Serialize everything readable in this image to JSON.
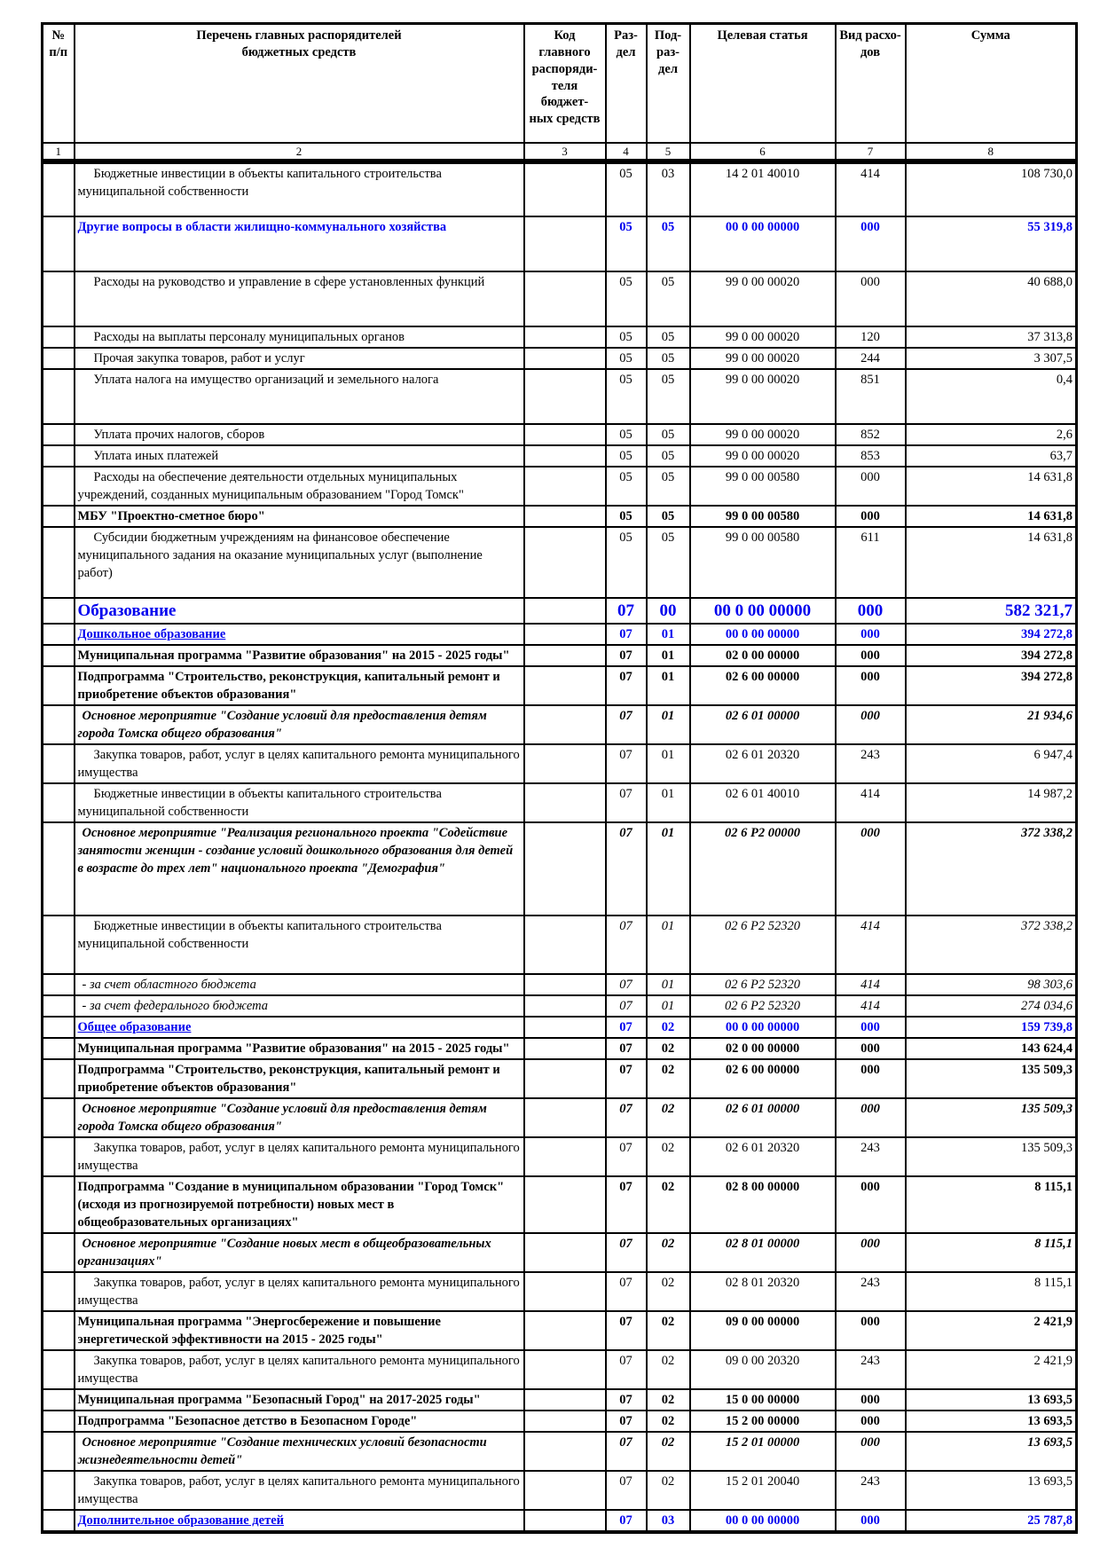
{
  "colors": {
    "accent_blue": "#0000EE",
    "text": "#000000",
    "border": "#000000",
    "page_background": "#FFFFFF"
  },
  "table": {
    "header": {
      "col_num": "№\nп/п",
      "col_name": "Перечень главных распорядителей\nбюджетных средств",
      "col_code": "Код\nглавного\nраспоряди-\nтеля бюджет-\nных средств",
      "col_razdel": "Раз-\nдел",
      "col_podrazdel": "Под-\nраз-\nдел",
      "col_target": "Целевая статья",
      "col_vid": "Вид расхо-\nдов",
      "col_sum": "Сумма"
    },
    "column_numbers": [
      "1",
      "2",
      "3",
      "4",
      "5",
      "6",
      "7",
      "8"
    ],
    "rows": [
      {
        "name": "Бюджетные инвестиции в объекты капитального строительства муниципальной собственности",
        "code": "",
        "razdel": "05",
        "podrazdel": "03",
        "target": "14 2 01 40010",
        "vid": "414",
        "sum": "108 730,0",
        "style": "plain",
        "minh": 62
      },
      {
        "name": "Другие вопросы в области жилищно-коммунального хозяйства",
        "code": "",
        "razdel": "05",
        "podrazdel": "05",
        "target": "00 0 00 00000",
        "vid": "000",
        "sum": "55 319,8",
        "style": "blue",
        "minh": 62
      },
      {
        "name": "Расходы на руководство и управление в сфере установленных функций",
        "code": "",
        "razdel": "05",
        "podrazdel": "05",
        "target": "99 0 00 00020",
        "vid": "000",
        "sum": "40 688,0",
        "style": "plain",
        "minh": 62
      },
      {
        "name": "Расходы на выплаты персоналу муниципальных органов",
        "code": "",
        "razdel": "05",
        "podrazdel": "05",
        "target": "99 0 00 00020",
        "vid": "120",
        "sum": "37 313,8",
        "style": "plain"
      },
      {
        "name": "Прочая закупка товаров, работ и услуг",
        "code": "",
        "razdel": "05",
        "podrazdel": "05",
        "target": "99 0 00 00020",
        "vid": "244",
        "sum": "3 307,5",
        "style": "plain"
      },
      {
        "name": "Уплата налога на имущество организаций и земельного налога",
        "code": "",
        "razdel": "05",
        "podrazdel": "05",
        "target": "99 0 00 00020",
        "vid": "851",
        "sum": "0,4",
        "style": "plain",
        "minh": 62
      },
      {
        "name": "Уплата прочих налогов, сборов",
        "code": "",
        "razdel": "05",
        "podrazdel": "05",
        "target": "99 0 00 00020",
        "vid": "852",
        "sum": "2,6",
        "style": "plain"
      },
      {
        "name": "Уплата иных платежей",
        "code": "",
        "razdel": "05",
        "podrazdel": "05",
        "target": "99 0 00 00020",
        "vid": "853",
        "sum": "63,7",
        "style": "plain"
      },
      {
        "name": "Расходы на обеспечение деятельности отдельных муниципальных учреждений, созданных муниципальным образованием \"Город Томск\"",
        "code": "",
        "razdel": "05",
        "podrazdel": "05",
        "target": "99 0 00 00580",
        "vid": "000",
        "sum": "14 631,8",
        "style": "plain"
      },
      {
        "name": "МБУ \"Проектно-сметное бюро\"",
        "code": "",
        "razdel": "05",
        "podrazdel": "05",
        "target": "99 0 00 00580",
        "vid": "000",
        "sum": "14 631,8",
        "style": "bold"
      },
      {
        "name": "Субсидии бюджетным учреждениям на финансовое обеспечение муниципального задания на оказание муниципальных услуг (выполнение работ)",
        "code": "",
        "razdel": "05",
        "podrazdel": "05",
        "target": "99 0 00 00580",
        "vid": "611",
        "sum": "14 631,8",
        "style": "plain",
        "minh": 80
      },
      {
        "name": "Образование",
        "code": "",
        "razdel": "07",
        "podrazdel": "00",
        "target": "00 0 00 00000",
        "vid": "000",
        "sum": "582 321,7",
        "style": "blue-big"
      },
      {
        "name": "Дошкольное образование",
        "code": "",
        "razdel": "07",
        "podrazdel": "01",
        "target": "00 0 00 00000",
        "vid": "000",
        "sum": "394 272,8",
        "style": "blue-underline"
      },
      {
        "name": "Муниципальная программа \"Развитие образования\" на 2015 - 2025 годы\"",
        "code": "",
        "razdel": "07",
        "podrazdel": "01",
        "target": "02 0 00 00000",
        "vid": "000",
        "sum": "394 272,8",
        "style": "bold"
      },
      {
        "name": "Подпрограмма \"Строительство, реконструкция, капитальный ремонт и приобретение объектов образования\"",
        "code": "",
        "razdel": "07",
        "podrazdel": "01",
        "target": "02 6 00 00000",
        "vid": "000",
        "sum": "394 272,8",
        "style": "bold"
      },
      {
        "name": "Основное мероприятие \"Создание условий для предоставления детям города Томска общего образования\"",
        "code": "",
        "razdel": "07",
        "podrazdel": "01",
        "target": "02 6 01 00000",
        "vid": "000",
        "sum": "21 934,6",
        "style": "bolditalic"
      },
      {
        "name": "Закупка товаров, работ, услуг в целях капитального ремонта муниципального имущества",
        "code": "",
        "razdel": "07",
        "podrazdel": "01",
        "target": "02 6 01 20320",
        "vid": "243",
        "sum": "6 947,4",
        "style": "plain"
      },
      {
        "name": "Бюджетные инвестиции в объекты капитального строительства муниципальной собственности",
        "code": "",
        "razdel": "07",
        "podrazdel": "01",
        "target": "02 6 01 40010",
        "vid": "414",
        "sum": "14 987,2",
        "style": "plain"
      },
      {
        "name": "Основное мероприятие \"Реализация регионального проекта \"Содействие занятости женщин - создание условий дошкольного образования для детей в возрасте до трех лет\" национального проекта \"Демография\"",
        "code": "",
        "razdel": "07",
        "podrazdel": "01",
        "target": "02 6 Р2 00000",
        "vid": "000",
        "sum": "372 338,2",
        "style": "bolditalic",
        "minh": 105
      },
      {
        "name": "Бюджетные инвестиции в объекты капитального строительства муниципальной собственности",
        "code": "",
        "razdel": "07",
        "podrazdel": "01",
        "target": "02 6 Р2 52320",
        "vid": "414",
        "sum": "372 338,2",
        "style": "italic-codes",
        "minh": 66
      },
      {
        "name": "- за счет областного бюджета",
        "code": "",
        "razdel": "07",
        "podrazdel": "01",
        "target": "02 6 Р2 52320",
        "vid": "414",
        "sum": "98 303,6",
        "style": "italic"
      },
      {
        "name": "- за счет федерального бюджета",
        "code": "",
        "razdel": "07",
        "podrazdel": "01",
        "target": "02 6 Р2 52320",
        "vid": "414",
        "sum": "274 034,6",
        "style": "italic"
      },
      {
        "name": "Общее образование",
        "code": "",
        "razdel": "07",
        "podrazdel": "02",
        "target": "00 0 00 00000",
        "vid": "000",
        "sum": "159 739,8",
        "style": "blue-underline"
      },
      {
        "name": "Муниципальная программа \"Развитие образования\" на 2015 - 2025 годы\"",
        "code": "",
        "razdel": "07",
        "podrazdel": "02",
        "target": "02 0 00 00000",
        "vid": "000",
        "sum": "143 624,4",
        "style": "bold"
      },
      {
        "name": "Подпрограмма \"Строительство, реконструкция, капитальный ремонт и приобретение объектов образования\"",
        "code": "",
        "razdel": "07",
        "podrazdel": "02",
        "target": "02 6 00 00000",
        "vid": "000",
        "sum": "135 509,3",
        "style": "bold"
      },
      {
        "name": "Основное мероприятие \"Создание условий для предоставления детям города Томска общего образования\"",
        "code": "",
        "razdel": "07",
        "podrazdel": "02",
        "target": "02 6 01 00000",
        "vid": "000",
        "sum": "135 509,3",
        "style": "bolditalic"
      },
      {
        "name": "Закупка товаров, работ, услуг в целях капитального ремонта муниципального имущества",
        "code": "",
        "razdel": "07",
        "podrazdel": "02",
        "target": "02 6 01 20320",
        "vid": "243",
        "sum": "135 509,3",
        "style": "plain"
      },
      {
        "name": "Подпрограмма \"Создание в муниципальном образовании \"Город Томск\" (исходя из прогнозируемой потребности) новых мест в общеобразовательных организациях\"",
        "code": "",
        "razdel": "07",
        "podrazdel": "02",
        "target": "02 8 00 00000",
        "vid": "000",
        "sum": "8 115,1",
        "style": "bold"
      },
      {
        "name": "Основное мероприятие \"Создание новых мест в общеобразовательных организациях\"",
        "code": "",
        "razdel": "07",
        "podrazdel": "02",
        "target": "02 8 01 00000",
        "vid": "000",
        "sum": "8 115,1",
        "style": "bolditalic"
      },
      {
        "name": "Закупка товаров, работ, услуг в целях капитального ремонта муниципального имущества",
        "code": "",
        "razdel": "07",
        "podrazdel": "02",
        "target": "02 8 01 20320",
        "vid": "243",
        "sum": "8 115,1",
        "style": "plain"
      },
      {
        "name": "Муниципальная программа \"Энергосбережение и повышение энергетической эффективности на 2015 - 2025 годы\"",
        "code": "",
        "razdel": "07",
        "podrazdel": "02",
        "target": "09 0 00 00000",
        "vid": "000",
        "sum": "2 421,9",
        "style": "bold"
      },
      {
        "name": "Закупка товаров, работ, услуг в целях капитального ремонта муниципального имущества",
        "code": "",
        "razdel": "07",
        "podrazdel": "02",
        "target": "09 0 00 20320",
        "vid": "243",
        "sum": "2 421,9",
        "style": "plain"
      },
      {
        "name": "Муниципальная программа \"Безопасный Город\" на 2017-2025 годы\"",
        "code": "",
        "razdel": "07",
        "podrazdel": "02",
        "target": "15 0 00 00000",
        "vid": "000",
        "sum": "13 693,5",
        "style": "bold"
      },
      {
        "name": "Подпрограмма \"Безопасное детство в Безопасном Городе\"",
        "code": "",
        "razdel": "07",
        "podrazdel": "02",
        "target": "15 2 00 00000",
        "vid": "000",
        "sum": "13 693,5",
        "style": "bold"
      },
      {
        "name": "Основное мероприятие \"Создание технических условий безопасности жизнедеятельности детей\"",
        "code": "",
        "razdel": "07",
        "podrazdel": "02",
        "target": "15 2 01 00000",
        "vid": "000",
        "sum": "13 693,5",
        "style": "bolditalic"
      },
      {
        "name": "Закупка товаров, работ, услуг в целях капитального ремонта муниципального имущества",
        "code": "",
        "razdel": "07",
        "podrazdel": "02",
        "target": "15 2 01 20040",
        "vid": "243",
        "sum": "13 693,5",
        "style": "plain"
      },
      {
        "name": "Дополнительное образование детей",
        "code": "",
        "razdel": "07",
        "podrazdel": "03",
        "target": "00 0 00 00000",
        "vid": "000",
        "sum": "25 787,8",
        "style": "blue-underline"
      }
    ]
  }
}
